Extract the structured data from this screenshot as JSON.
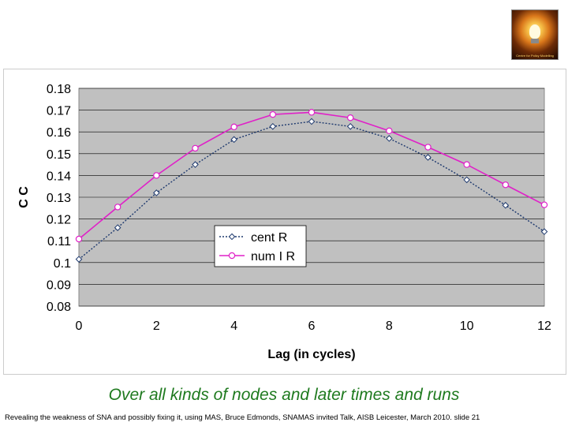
{
  "header": {
    "logo_caption": "Centre for Policy Modelling"
  },
  "chart_data": {
    "type": "line",
    "title": "",
    "xlabel": "Lag (in cycles)",
    "ylabel": "C C",
    "xlim": [
      0,
      12
    ],
    "ylim": [
      0.08,
      0.18
    ],
    "x_ticks": [
      "0",
      "2",
      "4",
      "6",
      "8",
      "10",
      "12"
    ],
    "y_ticks": [
      "0.08",
      "0.09",
      "0.1",
      "0.11",
      "0.12",
      "0.13",
      "0.14",
      "0.15",
      "0.16",
      "0.17",
      "0.18"
    ],
    "grid": true,
    "legend_position": "lower-center",
    "x": [
      0,
      1,
      2,
      3,
      4,
      5,
      6,
      7,
      8,
      9,
      10,
      11,
      12
    ],
    "series": [
      {
        "name": "cent R",
        "color": "#1f3a6e",
        "marker": "diamond",
        "line_style": "dotted",
        "values": [
          0.1015,
          0.116,
          0.132,
          0.145,
          0.1565,
          0.1625,
          0.1648,
          0.1625,
          0.157,
          0.1483,
          0.138,
          0.1263,
          0.1142
        ]
      },
      {
        "name": "num I R",
        "color": "#e020c8",
        "marker": "circle",
        "line_style": "solid",
        "values": [
          0.1108,
          0.1255,
          0.14,
          0.1525,
          0.1623,
          0.168,
          0.169,
          0.1665,
          0.1605,
          0.153,
          0.145,
          0.1357,
          0.1265
        ]
      }
    ]
  },
  "subtitle": "Over all kinds of nodes and later times and runs",
  "footer": "Revealing the weakness of SNA and possibly fixing it, using MAS, Bruce Edmonds, SNAMAS invited Talk, AISB Leicester, March 2010. slide 21"
}
